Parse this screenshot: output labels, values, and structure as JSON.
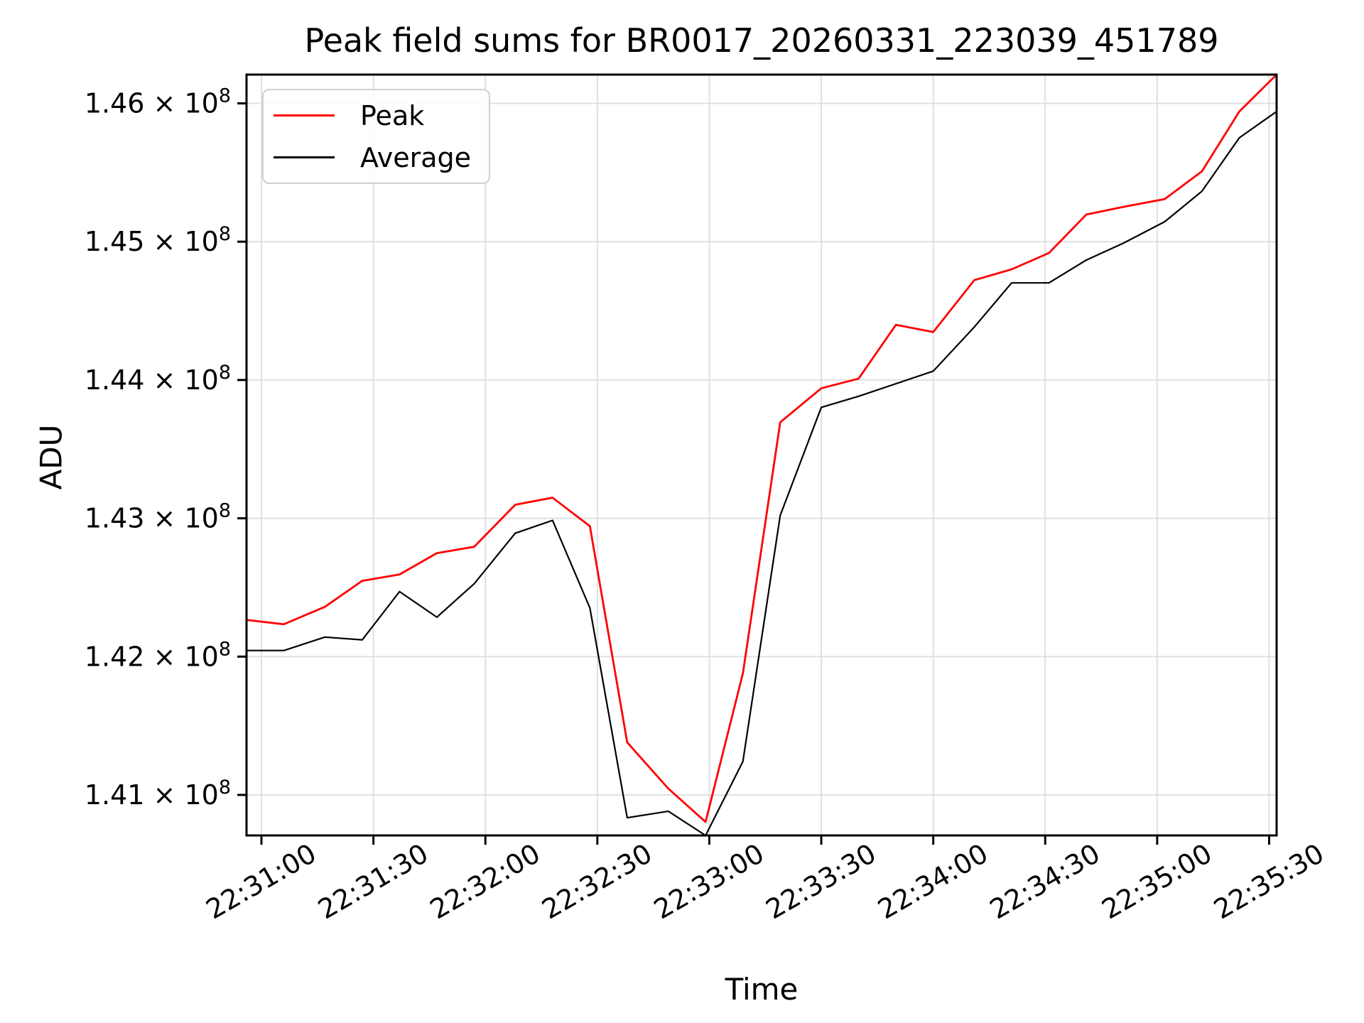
{
  "chart_data": {
    "type": "line",
    "title": "Peak field sums for BR0017_20260331_223039_451789",
    "xlabel": "Time",
    "ylabel": "ADU",
    "grid": true,
    "legend_position": "upper left",
    "background_color": "#ffffff",
    "grid_color": "#e0e0e0",
    "spine_color": "#000000",
    "ylim": [
      140707000,
      146208000
    ],
    "x": [
      "22:30:56",
      "22:31:06",
      "22:31:17",
      "22:31:27",
      "22:31:37",
      "22:31:47",
      "22:31:57",
      "22:32:08",
      "22:32:18",
      "22:32:28",
      "22:32:38",
      "22:32:49",
      "22:32:59",
      "22:33:09",
      "22:33:19",
      "22:33:30",
      "22:33:40",
      "22:33:50",
      "22:34:00",
      "22:34:11",
      "22:34:21",
      "22:34:31",
      "22:34:41",
      "22:34:51",
      "22:35:02",
      "22:35:12",
      "22:35:22",
      "22:35:32"
    ],
    "series": [
      {
        "name": "Peak",
        "color": "#ff0000",
        "values": [
          142265000,
          142234000,
          142360000,
          142548000,
          142594000,
          142748000,
          142794000,
          143098000,
          143149000,
          142943000,
          141380000,
          141046000,
          140805000,
          141879000,
          143694000,
          143940000,
          144010000,
          144399000,
          144347000,
          144722000,
          144800000,
          144918000,
          145196000,
          145252000,
          145308000,
          145509000,
          145941000,
          146208000
        ]
      },
      {
        "name": "Average",
        "color": "#000000",
        "values": [
          142044000,
          142044000,
          142141000,
          142121000,
          142470000,
          142285000,
          142527000,
          142892000,
          142985000,
          142352000,
          140835000,
          140882000,
          140707000,
          141242000,
          143021000,
          143802000,
          143882000,
          143973000,
          144064000,
          144383000,
          144702000,
          144702000,
          144867000,
          144990000,
          145144000,
          145365000,
          145751000,
          145941000
        ]
      }
    ],
    "x_ticks": [
      "22:31:00",
      "22:31:30",
      "22:32:00",
      "22:32:30",
      "22:33:00",
      "22:33:30",
      "22:34:00",
      "22:34:30",
      "22:35:00",
      "22:35:30"
    ],
    "y_ticks": [
      {
        "value": 141000000,
        "base": "1.41 × 10",
        "sup": "8"
      },
      {
        "value": 142000000,
        "base": "1.42 × 10",
        "sup": "8"
      },
      {
        "value": 143000000,
        "base": "1.43 × 10",
        "sup": "8"
      },
      {
        "value": 144000000,
        "base": "1.44 × 10",
        "sup": "8"
      },
      {
        "value": 145000000,
        "base": "1.45 × 10",
        "sup": "8"
      },
      {
        "value": 146000000,
        "base": "1.46 × 10",
        "sup": "8"
      }
    ]
  }
}
